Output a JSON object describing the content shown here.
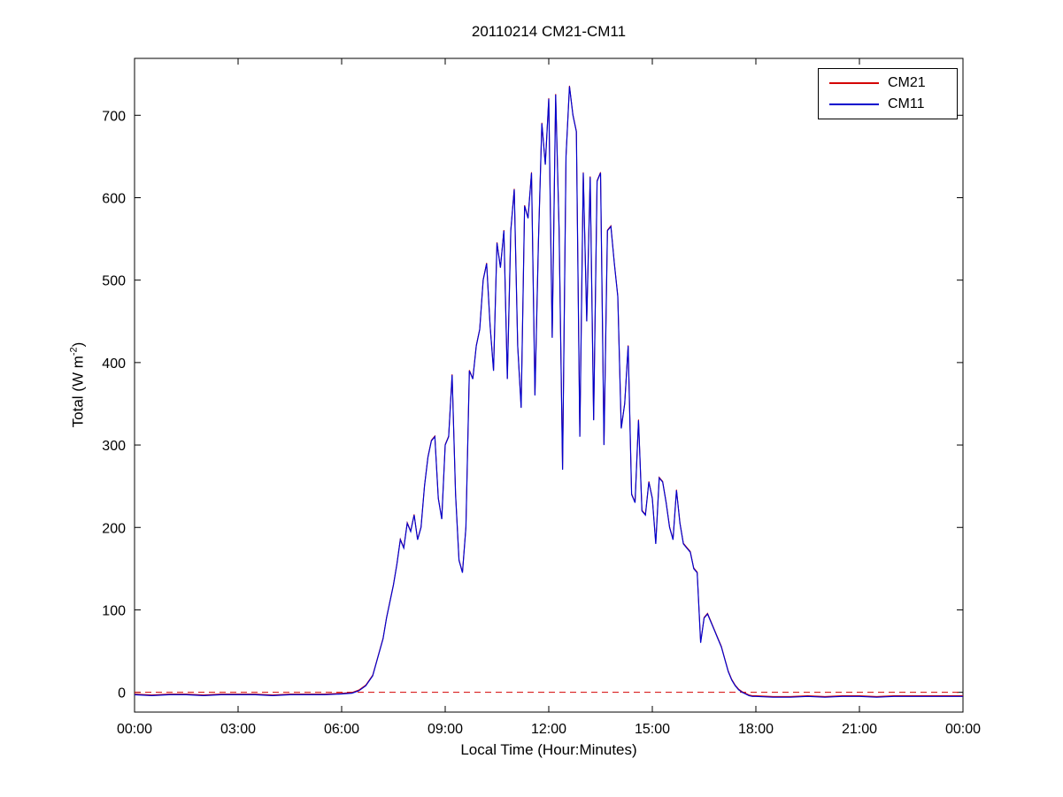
{
  "figure": {
    "title": "20110214 CM21-CM11",
    "xlabel": "Local Time (Hour:Minutes)",
    "ylabel_prefix": "Total (W m",
    "ylabel_sup": "-2",
    "ylabel_suffix": ")",
    "legend": [
      {
        "label": "CM21",
        "color": "#d40000"
      },
      {
        "label": "CM11",
        "color": "#0000cd"
      }
    ]
  },
  "chart_data": {
    "type": "line",
    "title": "20110214 CM21-CM11",
    "xlabel": "Local Time (Hour:Minutes)",
    "ylabel": "Total (W m^-2)",
    "xlim": [
      0,
      24
    ],
    "ylim": [
      -24,
      769
    ],
    "grid": false,
    "legend_position": "top-right",
    "xticks": {
      "values": [
        0,
        3,
        6,
        9,
        12,
        15,
        18,
        21,
        24
      ],
      "labels": [
        "00:00",
        "03:00",
        "06:00",
        "09:00",
        "12:00",
        "15:00",
        "18:00",
        "21:00",
        "00:00"
      ]
    },
    "yticks": [
      0,
      100,
      200,
      300,
      400,
      500,
      600,
      700
    ],
    "reference_line": {
      "y": 0,
      "color": "#d40000",
      "style": "dashed",
      "note": "red dashed zero line spanning full x-range"
    },
    "x_hours": [
      0,
      0.5,
      1,
      1.5,
      2,
      2.5,
      3,
      3.5,
      4,
      4.5,
      5,
      5.5,
      6,
      6.3,
      6.5,
      6.7,
      6.9,
      7,
      7.1,
      7.2,
      7.3,
      7.4,
      7.5,
      7.6,
      7.7,
      7.8,
      7.9,
      8,
      8.1,
      8.2,
      8.3,
      8.4,
      8.5,
      8.6,
      8.7,
      8.8,
      8.9,
      9,
      9.1,
      9.2,
      9.3,
      9.4,
      9.5,
      9.6,
      9.7,
      9.8,
      9.9,
      10,
      10.1,
      10.2,
      10.3,
      10.4,
      10.5,
      10.6,
      10.7,
      10.8,
      10.9,
      11,
      11.1,
      11.2,
      11.3,
      11.4,
      11.5,
      11.6,
      11.7,
      11.8,
      11.9,
      12,
      12.1,
      12.2,
      12.3,
      12.4,
      12.5,
      12.6,
      12.7,
      12.8,
      12.9,
      13,
      13.1,
      13.2,
      13.3,
      13.4,
      13.5,
      13.6,
      13.7,
      13.8,
      13.9,
      14,
      14.1,
      14.2,
      14.3,
      14.4,
      14.5,
      14.6,
      14.7,
      14.8,
      14.9,
      15,
      15.1,
      15.2,
      15.3,
      15.4,
      15.5,
      15.6,
      15.7,
      15.8,
      15.9,
      16,
      16.1,
      16.2,
      16.3,
      16.4,
      16.5,
      16.6,
      16.7,
      16.8,
      16.9,
      17,
      17.1,
      17.2,
      17.3,
      17.4,
      17.5,
      17.6,
      17.7,
      17.8,
      17.9,
      18,
      18.5,
      19,
      19.5,
      20,
      20.5,
      21,
      21.5,
      22,
      22.5,
      23,
      23.5,
      24
    ],
    "series": [
      {
        "name": "CM21",
        "color": "#d40000",
        "style": "solid",
        "values_ref": "CM11",
        "note": "visually overlaps CM11 almost exactly"
      },
      {
        "name": "CM11",
        "color": "#0000cd",
        "style": "solid",
        "values": [
          -3,
          -4,
          -3,
          -3,
          -4,
          -3,
          -3,
          -3,
          -4,
          -3,
          -3,
          -3,
          -2,
          -1,
          2,
          8,
          20,
          35,
          50,
          65,
          90,
          110,
          130,
          155,
          185,
          175,
          205,
          195,
          215,
          185,
          200,
          250,
          285,
          305,
          310,
          235,
          210,
          300,
          310,
          385,
          240,
          160,
          145,
          200,
          390,
          380,
          420,
          440,
          500,
          520,
          445,
          390,
          545,
          515,
          560,
          380,
          560,
          610,
          420,
          345,
          590,
          575,
          630,
          360,
          545,
          690,
          640,
          720,
          430,
          725,
          560,
          270,
          650,
          735,
          700,
          680,
          310,
          630,
          450,
          625,
          330,
          620,
          630,
          300,
          560,
          565,
          520,
          480,
          320,
          350,
          420,
          240,
          230,
          330,
          220,
          215,
          255,
          235,
          180,
          260,
          255,
          230,
          200,
          185,
          245,
          205,
          180,
          175,
          170,
          150,
          145,
          60,
          90,
          95,
          85,
          75,
          65,
          55,
          40,
          25,
          15,
          8,
          3,
          0,
          -2,
          -4,
          -5,
          -5,
          -6,
          -6,
          -5,
          -6,
          -5,
          -5,
          -6,
          -5,
          -5,
          -5,
          -5,
          -5
        ]
      }
    ]
  }
}
